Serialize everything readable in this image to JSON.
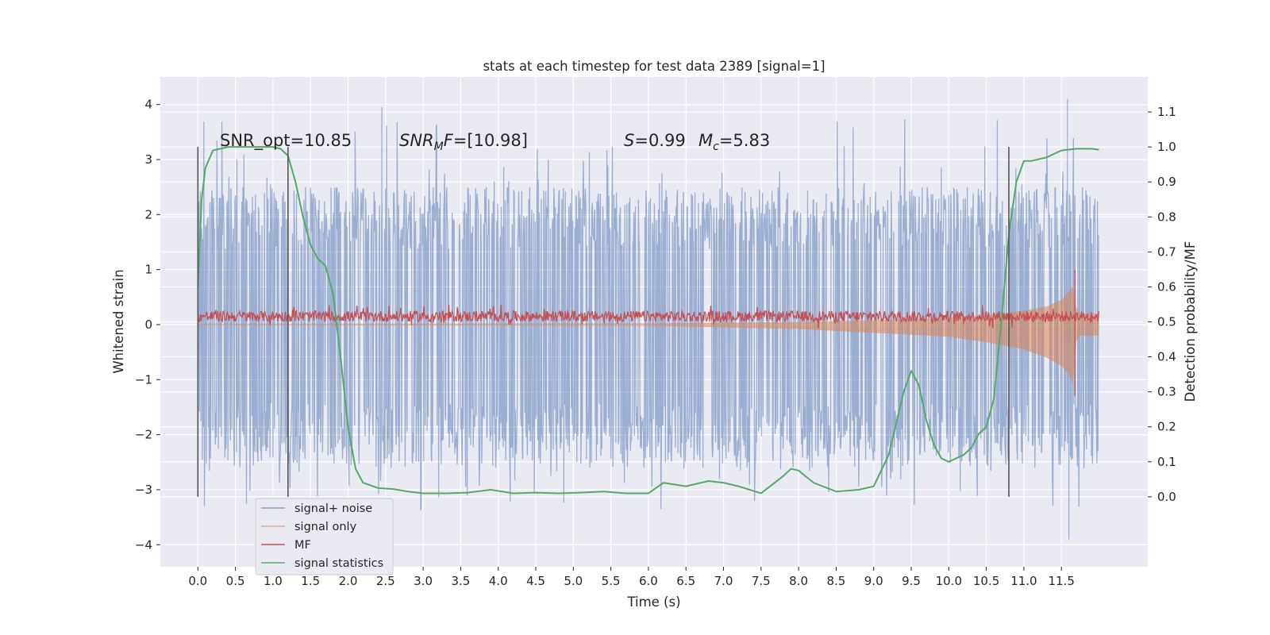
{
  "chart_data": {
    "type": "line",
    "title": "stats at each timestep for test data 2389 [signal=1]",
    "xlabel": "Time (s)",
    "ylabel": "Whitened strain",
    "y2label": "Detection probability/MF",
    "xlim": [
      -0.5,
      12.65
    ],
    "ylim": [
      -4.4,
      4.5
    ],
    "y2lim": [
      -0.2,
      1.2
    ],
    "x_ticks": [
      "0.0",
      "0.5",
      "1.0",
      "1.5",
      "2.0",
      "2.5",
      "3.0",
      "3.5",
      "4.0",
      "4.5",
      "5.0",
      "5.5",
      "6.0",
      "6.5",
      "7.0",
      "7.5",
      "8.0",
      "8.5",
      "9.0",
      "9.5",
      "10.0",
      "10.5",
      "11.0",
      "11.5"
    ],
    "y_ticks": [
      "4",
      "3",
      "2",
      "1",
      "0",
      "−1",
      "−2",
      "−3",
      "−4"
    ],
    "y2_ticks": [
      "1.1",
      "1.0",
      "0.9",
      "0.8",
      "0.7",
      "0.6",
      "0.5",
      "0.4",
      "0.3",
      "0.2",
      "0.1",
      "0.0"
    ],
    "grid": true,
    "legend_placement": "lower-left",
    "colors": {
      "signal_noise": "#4c72b0",
      "signal_only": "#dd8452",
      "mf": "#c44e52",
      "statistics": "#55a868",
      "vline": "#555555",
      "axes_bg": "#eaeaf2",
      "grid": "#ffffff"
    },
    "annotations": {
      "snr_opt": "SNR_opt=10.85",
      "snr_mf_name": "SNR",
      "snr_mf_sub": "M",
      "snr_mf_rest": "F=[10.98]",
      "s_name": "S",
      "s_val": "=0.99",
      "mc_name": "M",
      "mc_sub": "c",
      "mc_val": "=5.83"
    },
    "vlines": [
      0.0,
      1.2,
      10.8
    ],
    "series": [
      {
        "name": "signal+ noise",
        "x_range": [
          0.0,
          12.0
        ],
        "envelope": [
          -2.6,
          2.5
        ],
        "peak_max": 4.1,
        "peak_min": -3.9
      },
      {
        "name": "signal only",
        "x": [
          0.0,
          6.0,
          8.0,
          9.0,
          10.0,
          10.5,
          11.0,
          11.3,
          11.5,
          11.6,
          11.65,
          11.7,
          11.75,
          12.0
        ],
        "upper": [
          0.01,
          0.02,
          0.05,
          0.08,
          0.12,
          0.17,
          0.25,
          0.33,
          0.45,
          0.6,
          0.7,
          0.3,
          0.2,
          0.2
        ],
        "lower": [
          -0.01,
          -0.02,
          -0.08,
          -0.15,
          -0.22,
          -0.32,
          -0.45,
          -0.6,
          -0.75,
          -0.9,
          -1.1,
          -0.3,
          -0.2,
          -0.2
        ]
      },
      {
        "name": "MF",
        "x_range": [
          0.0,
          12.0
        ],
        "baseline": 0.15,
        "band": 0.1,
        "spike": {
          "x": 11.68,
          "y": 1.0
        }
      },
      {
        "name": "signal statistics",
        "x": [
          0.0,
          0.05,
          0.1,
          0.2,
          0.4,
          0.6,
          0.8,
          1.0,
          1.1,
          1.2,
          1.3,
          1.4,
          1.5,
          1.6,
          1.7,
          1.8,
          1.9,
          2.0,
          2.1,
          2.2,
          2.4,
          2.6,
          2.8,
          3.0,
          3.3,
          3.6,
          3.9,
          4.2,
          4.5,
          4.8,
          5.1,
          5.4,
          5.7,
          6.0,
          6.2,
          6.5,
          6.8,
          7.0,
          7.2,
          7.5,
          7.8,
          7.9,
          8.0,
          8.2,
          8.5,
          8.8,
          9.0,
          9.2,
          9.4,
          9.5,
          9.6,
          9.7,
          9.8,
          9.9,
          10.0,
          10.1,
          10.2,
          10.3,
          10.4,
          10.5,
          10.6,
          10.7,
          10.8,
          10.9,
          11.0,
          11.1,
          11.2,
          11.3,
          11.5,
          11.7,
          11.9,
          12.0
        ],
        "y": [
          0.6,
          0.85,
          0.94,
          0.99,
          1.0,
          1.0,
          1.0,
          1.0,
          0.995,
          0.975,
          0.9,
          0.8,
          0.72,
          0.68,
          0.66,
          0.58,
          0.4,
          0.2,
          0.08,
          0.04,
          0.025,
          0.022,
          0.015,
          0.01,
          0.01,
          0.012,
          0.02,
          0.01,
          0.012,
          0.01,
          0.012,
          0.015,
          0.01,
          0.01,
          0.04,
          0.03,
          0.045,
          0.04,
          0.03,
          0.01,
          0.06,
          0.08,
          0.075,
          0.04,
          0.015,
          0.02,
          0.03,
          0.12,
          0.3,
          0.36,
          0.32,
          0.22,
          0.15,
          0.11,
          0.1,
          0.11,
          0.12,
          0.14,
          0.18,
          0.2,
          0.28,
          0.5,
          0.75,
          0.9,
          0.96,
          0.96,
          0.965,
          0.97,
          0.99,
          0.995,
          0.995,
          0.992
        ]
      }
    ]
  }
}
